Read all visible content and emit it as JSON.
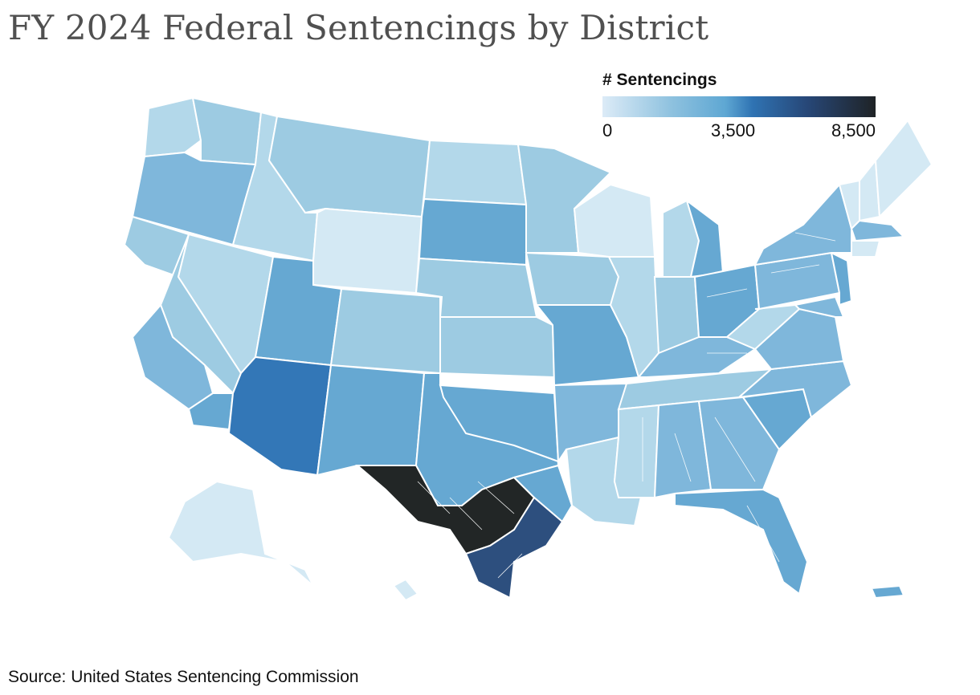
{
  "title": "FY 2024 Federal Sentencings by District",
  "legend": {
    "title": "# Sentencings",
    "ticks": [
      "0",
      "3,500",
      "8,500"
    ],
    "colors": [
      "#dcebf7",
      "#8fc2df",
      "#5ea7d3",
      "#2f73b3",
      "#274777",
      "#1f2326"
    ]
  },
  "source": "Source: United States Sentencing Commission",
  "palette": {
    "very_light": "#d4e9f4",
    "light": "#b3d8ea",
    "light_mid": "#9dcbe2",
    "mid": "#7fb7db",
    "mid_dark": "#66a8d2",
    "blue": "#3377b7",
    "navy": "#2d4f7e",
    "black": "#222626"
  }
}
